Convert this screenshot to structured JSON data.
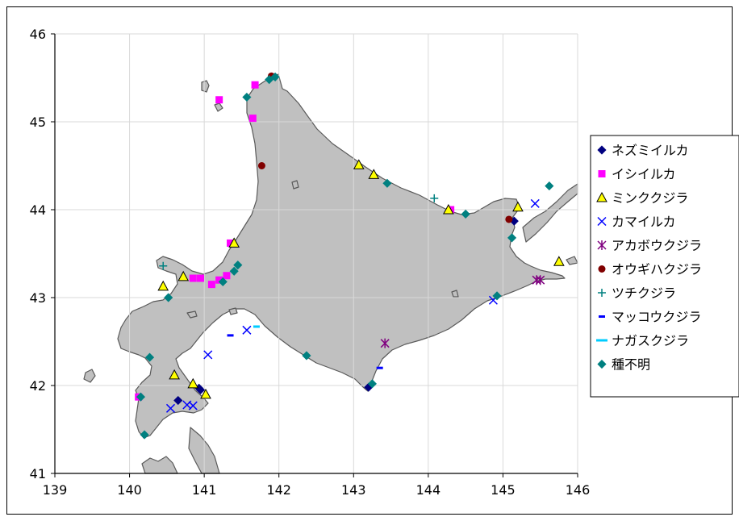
{
  "chart_data": {
    "type": "scatter",
    "xlim": [
      139,
      146
    ],
    "ylim": [
      41,
      46
    ],
    "x_ticks": [
      "139",
      "140",
      "141",
      "142",
      "143",
      "144",
      "145",
      "146"
    ],
    "y_ticks": [
      "41",
      "42",
      "43",
      "44",
      "45",
      "46"
    ],
    "grid": true,
    "legend_placement": "right",
    "series": [
      {
        "name": "ネズミイルカ",
        "marker": "diamond",
        "color": "#000080",
        "points": [
          [
            140.65,
            41.83
          ],
          [
            140.93,
            41.97
          ],
          [
            140.95,
            41.95
          ],
          [
            143.2,
            41.98
          ],
          [
            145.15,
            43.87
          ]
        ]
      },
      {
        "name": "イシイルカ",
        "marker": "square",
        "color": "#ff00ff",
        "points": [
          [
            141.2,
            45.25
          ],
          [
            141.68,
            45.42
          ],
          [
            141.65,
            45.04
          ],
          [
            140.85,
            43.22
          ],
          [
            140.95,
            43.22
          ],
          [
            141.1,
            43.15
          ],
          [
            141.2,
            43.2
          ],
          [
            141.3,
            43.25
          ],
          [
            141.35,
            43.62
          ],
          [
            144.3,
            44.0
          ],
          [
            140.12,
            41.87
          ]
        ]
      },
      {
        "name": "ミンククジラ",
        "marker": "triangle",
        "color": "#ffff00",
        "points": [
          [
            143.07,
            44.51
          ],
          [
            143.27,
            44.4
          ],
          [
            144.27,
            44.0
          ],
          [
            145.2,
            44.03
          ],
          [
            141.4,
            43.62
          ],
          [
            140.72,
            43.24
          ],
          [
            140.45,
            43.13
          ],
          [
            140.6,
            42.12
          ],
          [
            140.85,
            42.02
          ],
          [
            141.02,
            41.9
          ],
          [
            145.75,
            43.41
          ]
        ]
      },
      {
        "name": "カマイルカ",
        "marker": "x",
        "color": "#0000ff",
        "points": [
          [
            145.43,
            44.07
          ],
          [
            144.87,
            42.97
          ],
          [
            141.57,
            42.63
          ],
          [
            141.05,
            42.35
          ],
          [
            140.55,
            41.74
          ],
          [
            140.77,
            41.78
          ],
          [
            140.85,
            41.77
          ]
        ]
      },
      {
        "name": "アカボウクジラ",
        "marker": "star",
        "color": "#800080",
        "points": [
          [
            143.42,
            42.48
          ],
          [
            145.45,
            43.2
          ],
          [
            145.5,
            43.2
          ]
        ]
      },
      {
        "name": "オウギハクジラ",
        "marker": "circle",
        "color": "#800000",
        "points": [
          [
            141.9,
            45.52
          ],
          [
            141.77,
            44.5
          ],
          [
            145.08,
            43.89
          ]
        ]
      },
      {
        "name": "ツチクジラ",
        "marker": "plus",
        "color": "#008080",
        "points": [
          [
            144.08,
            44.13
          ],
          [
            140.45,
            43.36
          ]
        ]
      },
      {
        "name": "マッコウクジラ",
        "marker": "dash",
        "color": "#0000ff",
        "points": [
          [
            143.35,
            42.2
          ],
          [
            141.35,
            42.57
          ]
        ]
      },
      {
        "name": "ナガスクジラ",
        "marker": "dash",
        "color": "#00ccff",
        "points": [
          [
            141.7,
            42.67
          ]
        ]
      },
      {
        "name": "種不明",
        "marker": "diamond",
        "color": "#008080",
        "points": [
          [
            141.95,
            45.51
          ],
          [
            141.87,
            45.48
          ],
          [
            141.57,
            45.28
          ],
          [
            143.45,
            44.3
          ],
          [
            144.5,
            43.95
          ],
          [
            145.12,
            43.68
          ],
          [
            145.62,
            44.27
          ],
          [
            141.45,
            43.37
          ],
          [
            141.4,
            43.3
          ],
          [
            141.25,
            43.18
          ],
          [
            140.52,
            43.0
          ],
          [
            144.92,
            43.02
          ],
          [
            142.37,
            42.34
          ],
          [
            143.25,
            42.02
          ],
          [
            140.27,
            42.32
          ],
          [
            140.15,
            41.87
          ],
          [
            140.2,
            41.44
          ]
        ]
      }
    ]
  }
}
